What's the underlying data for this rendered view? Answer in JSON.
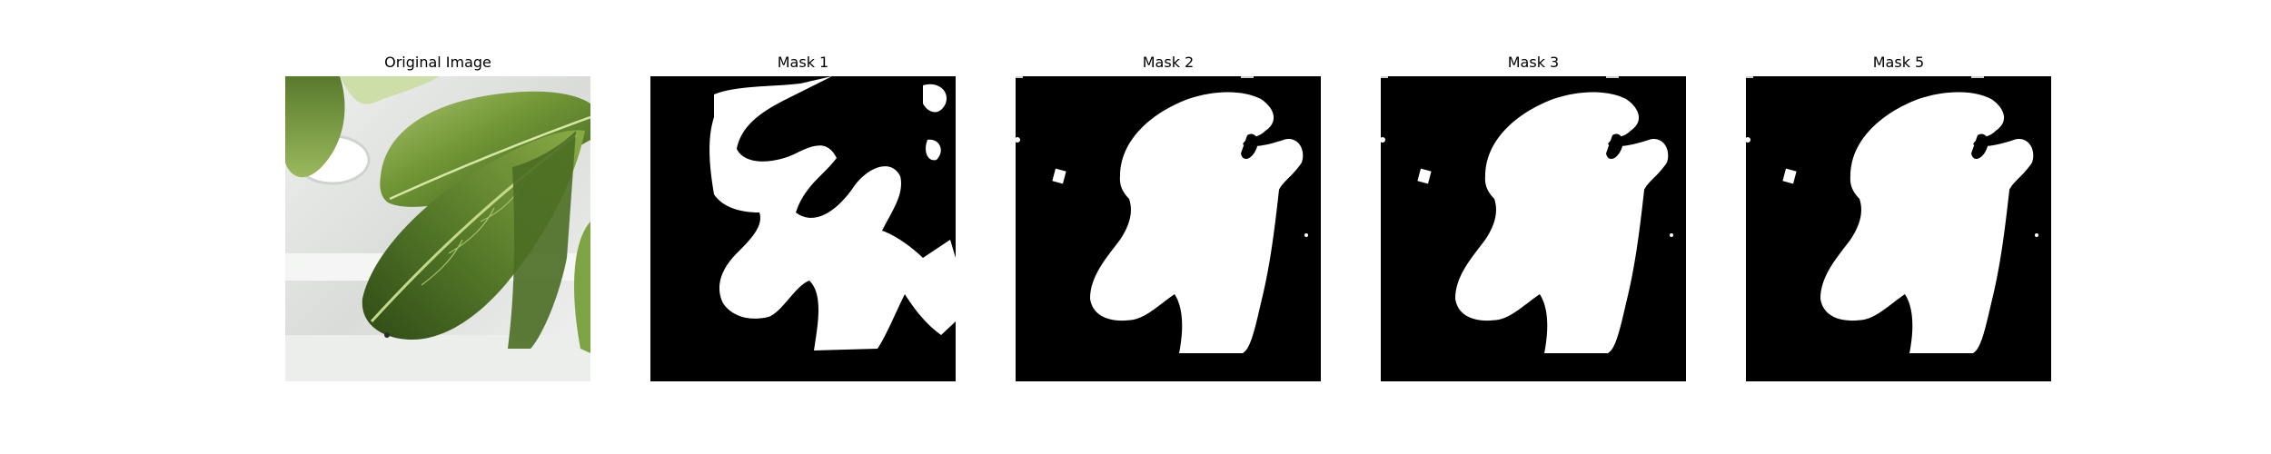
{
  "panels": [
    {
      "title": "Original Image",
      "kind": "photo"
    },
    {
      "title": "Mask 1",
      "kind": "mask"
    },
    {
      "title": "Mask 2",
      "kind": "mask"
    },
    {
      "title": "Mask 3",
      "kind": "mask"
    },
    {
      "title": "Mask 5",
      "kind": "mask"
    }
  ],
  "colors": {
    "mask_background": "#000000",
    "mask_foreground": "#ffffff",
    "leaf_dark": "#3e5f1f",
    "leaf_mid": "#6f9434",
    "leaf_light": "#a9c46a",
    "backdrop": "#e6e8e6"
  }
}
